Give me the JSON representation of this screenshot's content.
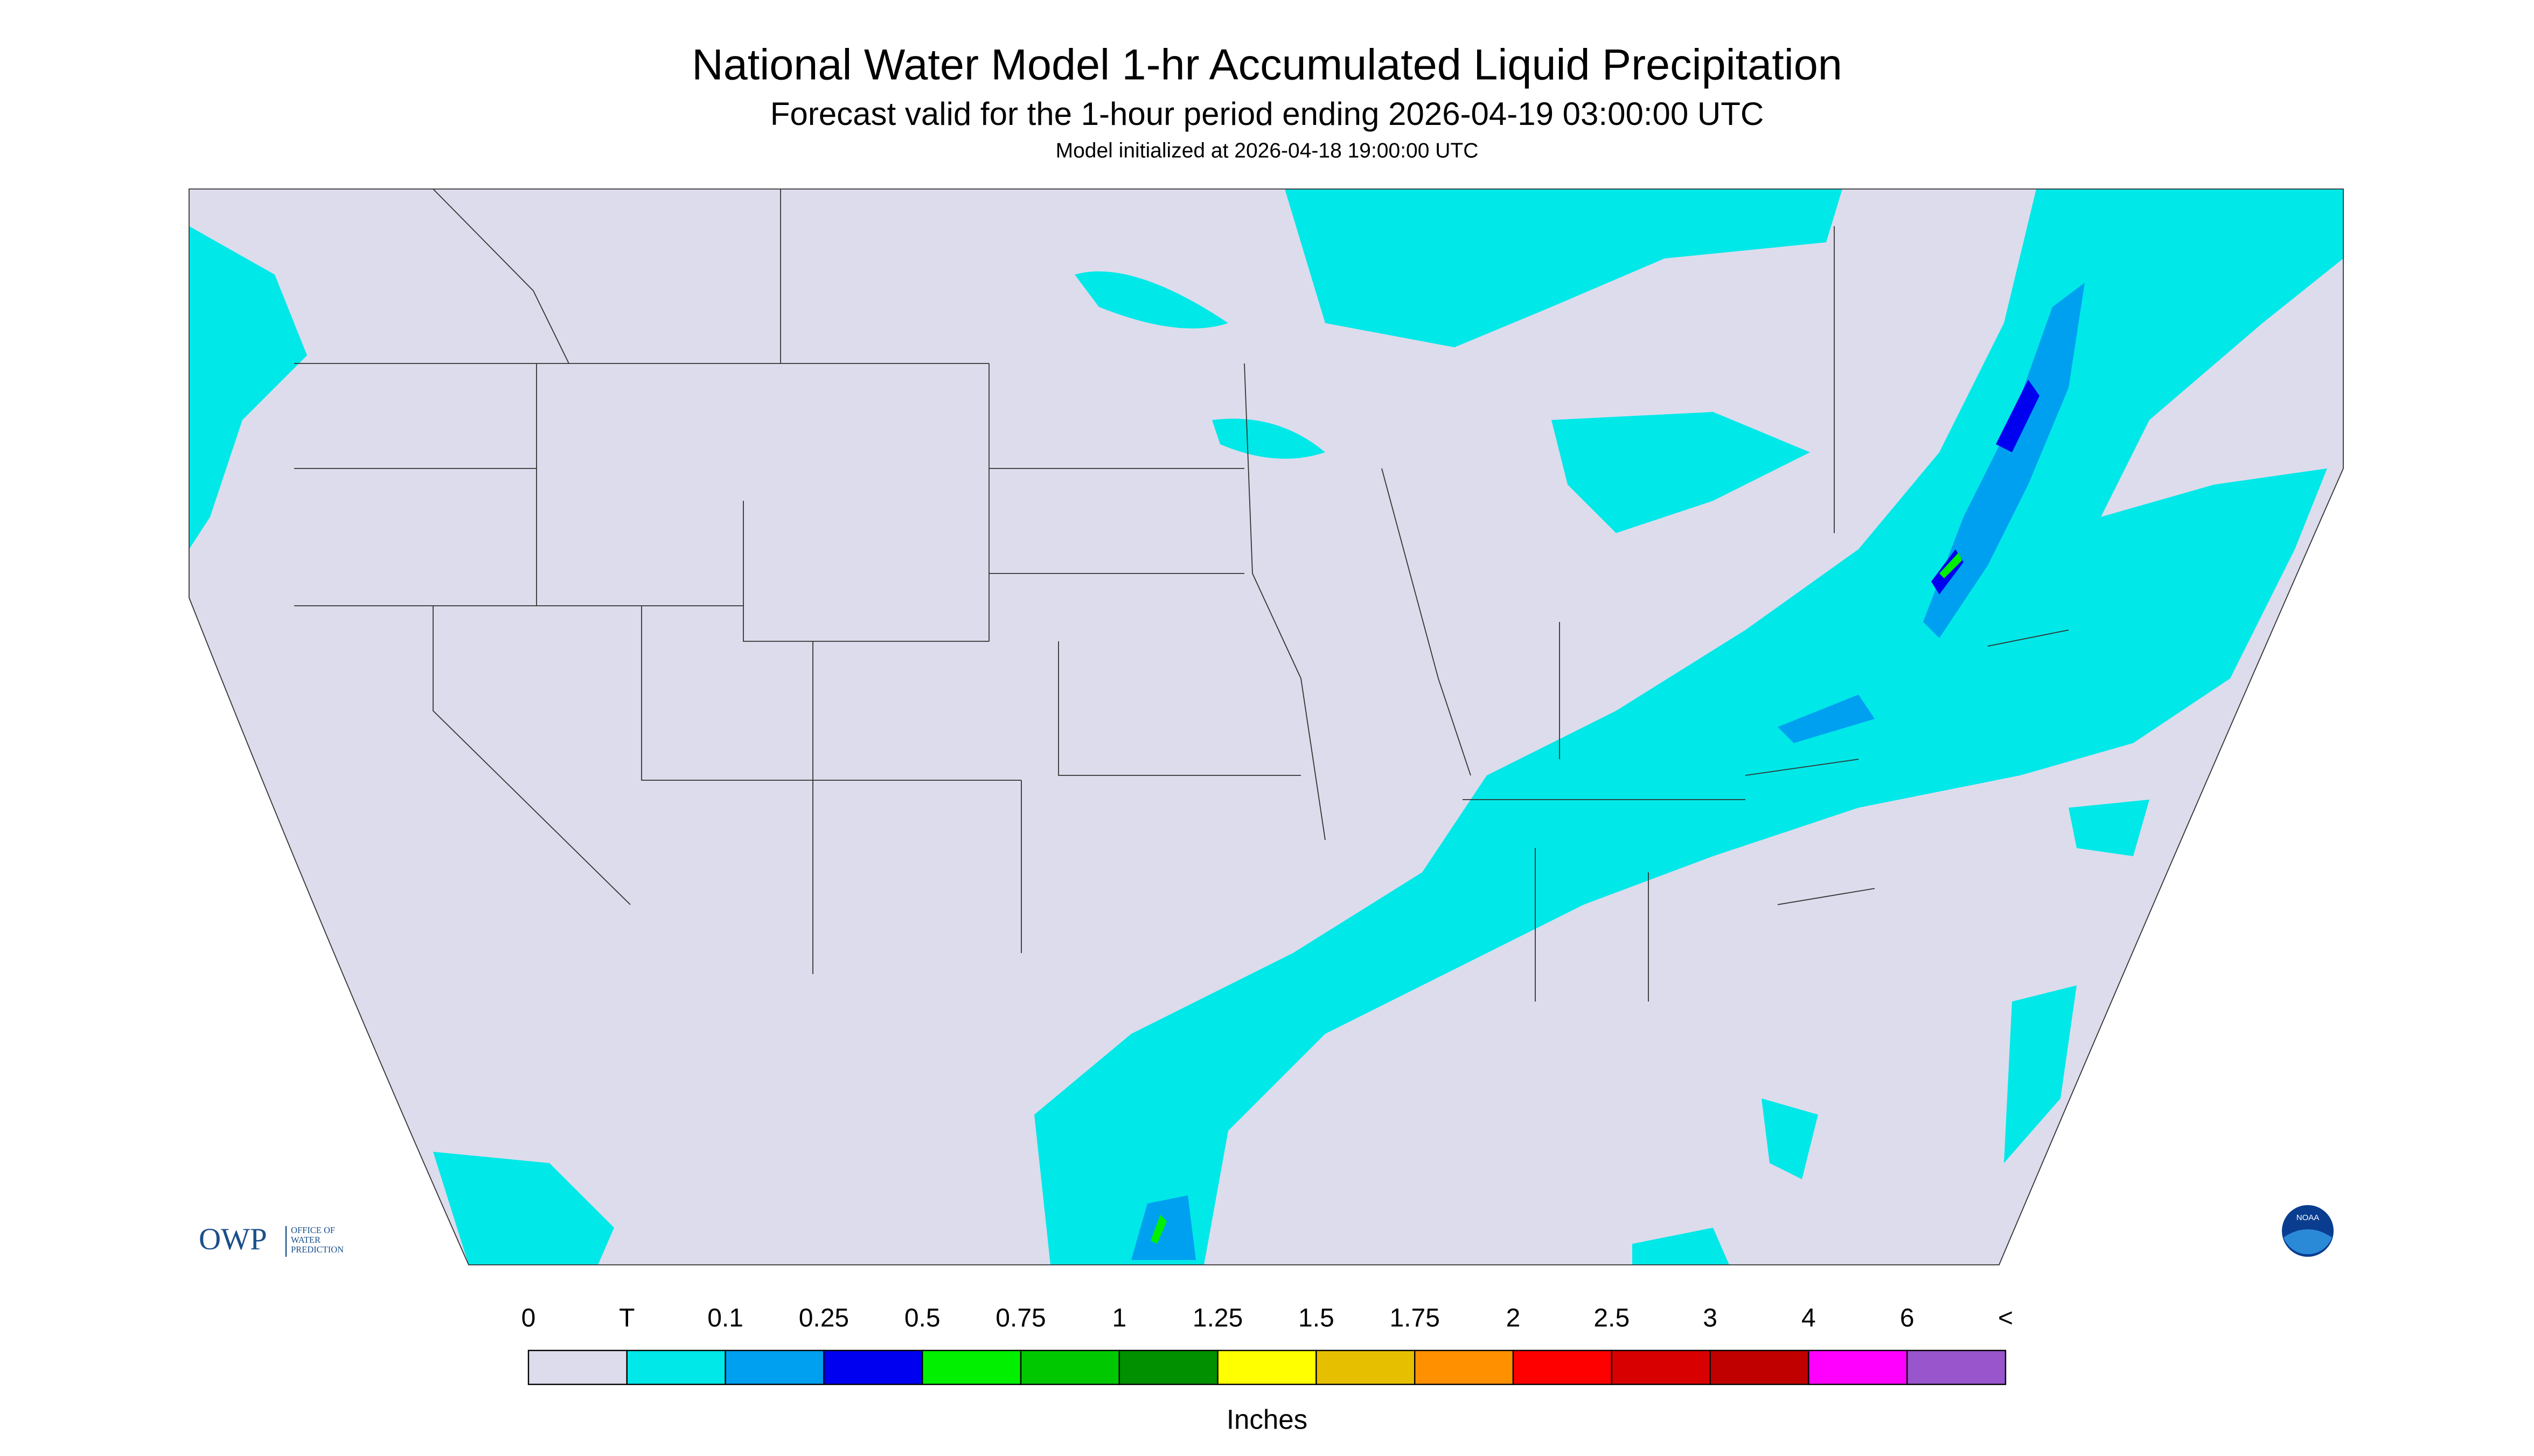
{
  "header": {
    "title": "National Water Model 1-hr Accumulated Liquid Precipitation",
    "subtitle": "Forecast valid for the 1-hour period ending 2026-04-19 03:00:00 UTC",
    "initialized": "Model initialized at 2026-04-18 19:00:00 UTC"
  },
  "map": {
    "owp_logo": {
      "abbr": "OWP",
      "lines": [
        "OFFICE OF",
        "WATER",
        "PREDICTION"
      ]
    },
    "noaa_logo": "NOAA"
  },
  "legend": {
    "labels": [
      "0",
      "T",
      "0.1",
      "0.25",
      "0.5",
      "0.75",
      "1",
      "1.25",
      "1.5",
      "1.75",
      "2",
      "2.5",
      "3",
      "4",
      "6",
      "<"
    ],
    "colors": [
      "#dcdcec",
      "#00e8e8",
      "#00a0f0",
      "#0000f0",
      "#00f000",
      "#00c800",
      "#009000",
      "#ffff00",
      "#e6c000",
      "#ff9000",
      "#ff0000",
      "#d80000",
      "#c00000",
      "#ff00ff",
      "#9955cc"
    ],
    "unit": "Inches"
  }
}
